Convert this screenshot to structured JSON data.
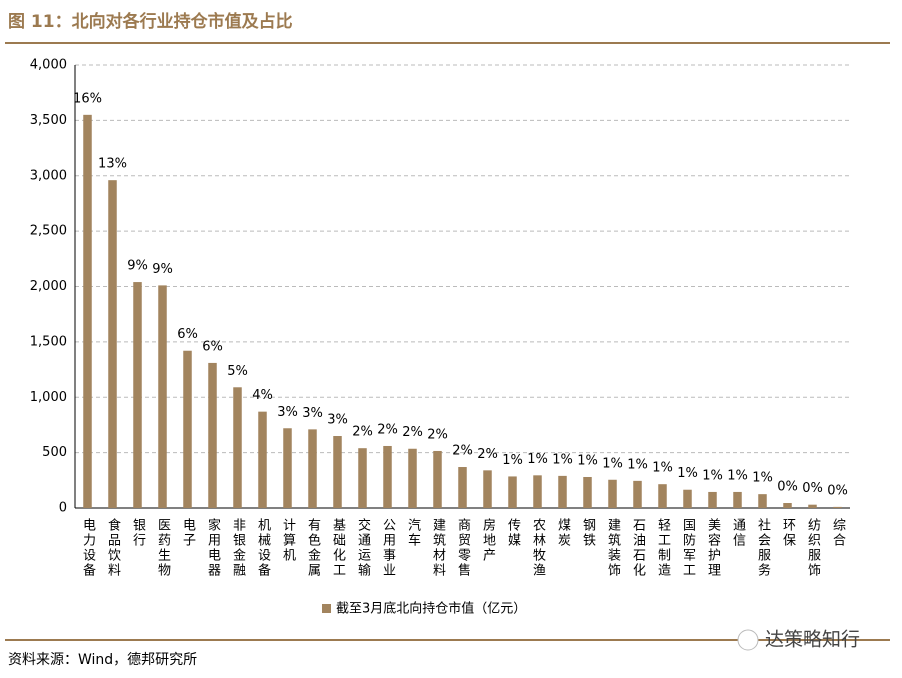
{
  "header": {
    "title": "图 11：北向对各行业持仓市值及占比"
  },
  "chart_data": {
    "type": "bar",
    "categories": [
      "电力设备",
      "食品饮料",
      "银行",
      "医药生物",
      "电子",
      "家用电器",
      "非银金融",
      "机械设备",
      "计算机",
      "有色金属",
      "基础化工",
      "交通运输",
      "公用事业",
      "汽车",
      "建筑材料",
      "商贸零售",
      "房地产",
      "传媒",
      "农林牧渔",
      "煤炭",
      "钢铁",
      "建筑装饰",
      "石油石化",
      "轻工制造",
      "国防军工",
      "美容护理",
      "通信",
      "社会服务",
      "环保",
      "纺织服饰",
      "综合"
    ],
    "series": [
      {
        "name": "截至3月底北向持仓市值（亿元）",
        "color": "#a2845e",
        "values": [
          3550,
          2960,
          2040,
          2010,
          1420,
          1310,
          1090,
          870,
          720,
          710,
          650,
          540,
          560,
          535,
          515,
          370,
          340,
          285,
          295,
          290,
          280,
          255,
          245,
          215,
          165,
          145,
          145,
          125,
          45,
          30,
          10
        ],
        "share_labels": [
          "16%",
          "13%",
          "9%",
          "9%",
          "6%",
          "6%",
          "5%",
          "4%",
          "3%",
          "3%",
          "3%",
          "2%",
          "2%",
          "2%",
          "2%",
          "2%",
          "2%",
          "1%",
          "1%",
          "1%",
          "1%",
          "1%",
          "1%",
          "1%",
          "1%",
          "1%",
          "1%",
          "1%",
          "0%",
          "0%",
          "0%"
        ]
      }
    ],
    "ylim": [
      0,
      4000
    ],
    "yticks": [
      0,
      500,
      {
        "value": 1000,
        "label": "1,000"
      },
      {
        "value": 1500,
        "label": "1,500"
      },
      {
        "value": 2000,
        "label": "2,000"
      },
      {
        "value": 2500,
        "label": "2,500"
      },
      {
        "value": 3000,
        "label": "3,000"
      },
      {
        "value": 3500,
        "label": "3,500"
      },
      {
        "value": 4000,
        "label": "4,000"
      }
    ],
    "grid": true,
    "legend": "bottom"
  },
  "footer": {
    "source": "资料来源：Wind，德邦研究所",
    "watermark": "达策略知行"
  }
}
